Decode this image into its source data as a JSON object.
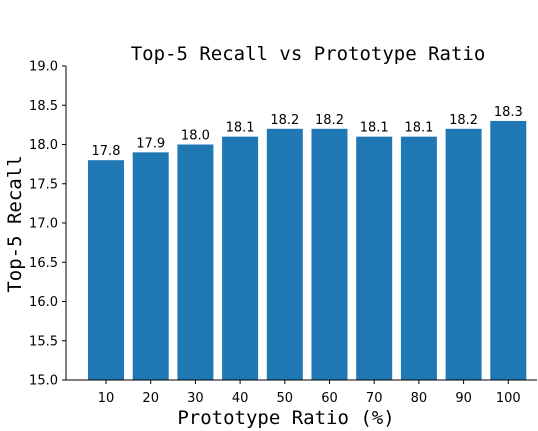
{
  "chart_data": {
    "type": "bar",
    "title": "Top-5 Recall vs Prototype Ratio",
    "xlabel": "Prototype Ratio (%)",
    "ylabel": "Top-5 Recall",
    "categories": [
      "10",
      "20",
      "30",
      "40",
      "50",
      "60",
      "70",
      "80",
      "90",
      "100"
    ],
    "values": [
      17.8,
      17.9,
      18.0,
      18.1,
      18.2,
      18.2,
      18.1,
      18.1,
      18.2,
      18.3
    ],
    "value_labels": [
      "17.8",
      "17.9",
      "18.0",
      "18.1",
      "18.2",
      "18.2",
      "18.1",
      "18.1",
      "18.2",
      "18.3"
    ],
    "ylim": [
      15.0,
      19.0
    ],
    "yticks": [
      "15.0",
      "15.5",
      "16.0",
      "16.5",
      "17.0",
      "17.5",
      "18.0",
      "18.5",
      "19.0"
    ],
    "grid": false,
    "bar_color": "#1f77b4"
  }
}
